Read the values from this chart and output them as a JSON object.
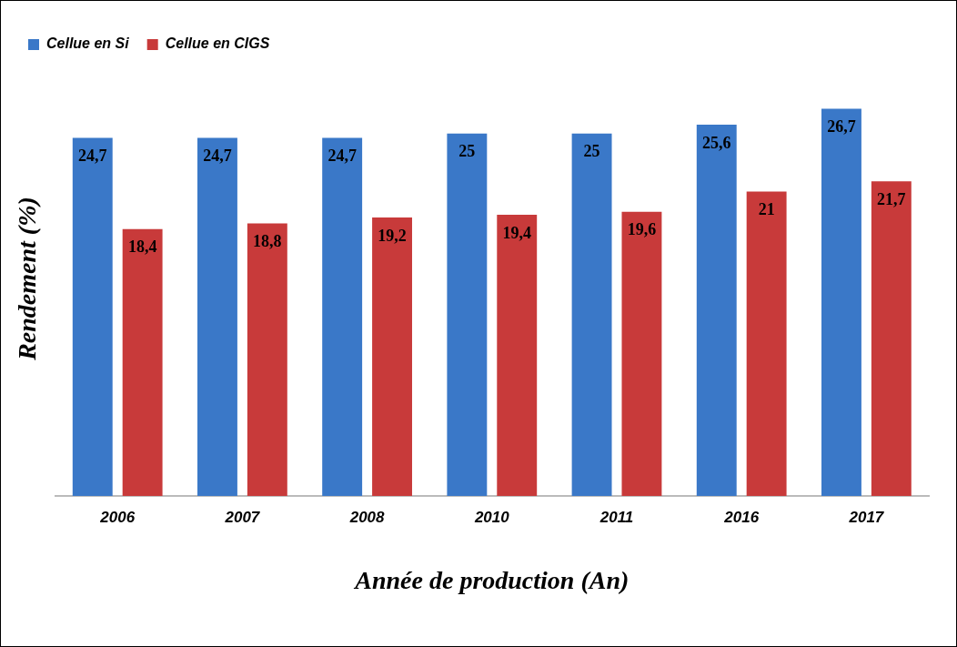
{
  "chart_data": {
    "type": "bar",
    "xlabel": "Année de production (An)",
    "ylabel": "Rendement (%)",
    "categories": [
      "2006",
      "2007",
      "2008",
      "2010",
      "2011",
      "2016",
      "2017"
    ],
    "series": [
      {
        "name": "Cellue en Si",
        "color": "#3a78c8",
        "values": [
          24.7,
          24.7,
          24.7,
          25,
          25,
          25.6,
          26.7
        ],
        "value_labels": [
          "24,7",
          "24,7",
          "24,7",
          "25",
          "25",
          "25,6",
          "26,7"
        ]
      },
      {
        "name": "Cellue en CIGS",
        "color": "#c83a3a",
        "values": [
          18.4,
          18.8,
          19.2,
          19.4,
          19.6,
          21,
          21.7
        ],
        "value_labels": [
          "18,4",
          "18,8",
          "19,2",
          "19,4",
          "19,6",
          "21",
          "21,7"
        ]
      }
    ],
    "legend": "top left",
    "grid": false
  }
}
